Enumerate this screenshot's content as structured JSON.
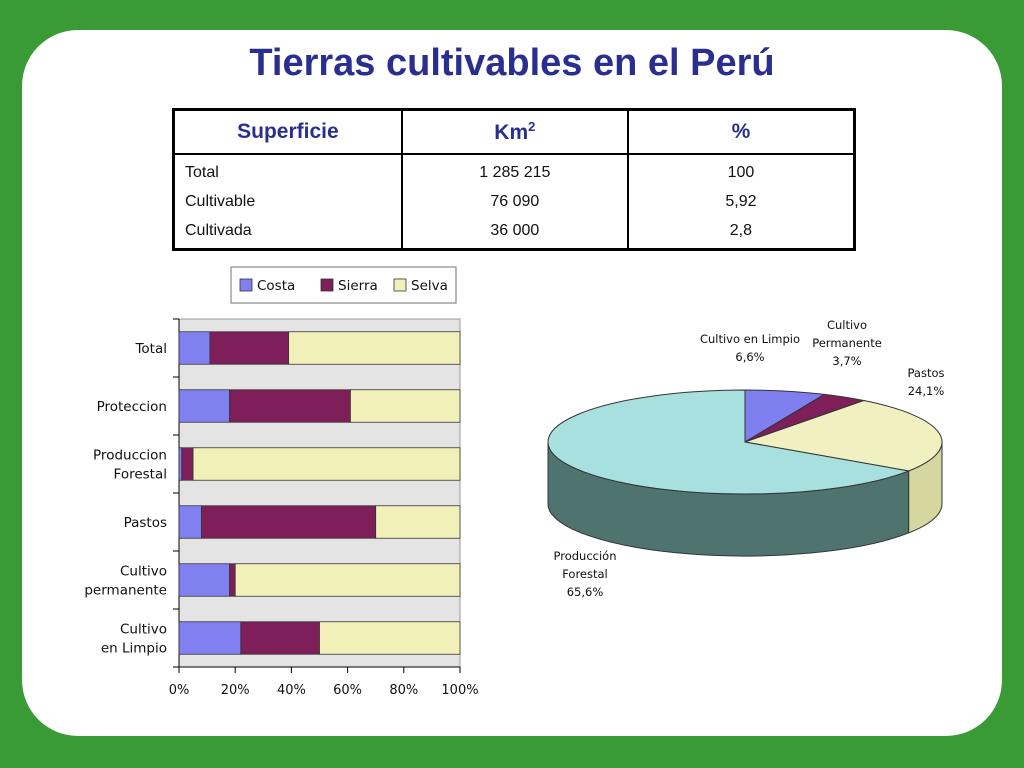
{
  "title": "Tierras cultivables en el Perú",
  "table": {
    "headers": {
      "superficie": "Superficie",
      "km_base": "Km",
      "km_sup": "2",
      "pct": "%"
    },
    "rows": [
      {
        "name": "Total",
        "km": "1 285 215",
        "pct": "100"
      },
      {
        "name": "Cultivable",
        "km": "76 090",
        "pct": "5,92"
      },
      {
        "name": "Cultivada",
        "km": "36 000",
        "pct": "2,8"
      }
    ]
  },
  "chart_data": [
    {
      "type": "bar",
      "orientation": "horizontal",
      "stacked": "percent",
      "categories": [
        "Total",
        "Proteccion",
        "Produccion Forestal",
        "Pastos",
        "Cultivo permanente",
        "Cultivo en Limpio"
      ],
      "series": [
        {
          "name": "Costa",
          "color": "#8080f0",
          "values": [
            11,
            18,
            1,
            8,
            18,
            22
          ]
        },
        {
          "name": "Sierra",
          "color": "#7f1f5a",
          "values": [
            28,
            43,
            4,
            62,
            2,
            28
          ]
        },
        {
          "name": "Selva",
          "color": "#f0f0b8",
          "values": [
            61,
            39,
            95,
            30,
            80,
            50
          ]
        }
      ],
      "xlim": [
        0,
        100
      ],
      "xticks": [
        "0%",
        "20%",
        "40%",
        "60%",
        "80%",
        "100%"
      ],
      "legend": "top"
    },
    {
      "type": "pie",
      "style": "3d",
      "slices": [
        {
          "label": "Cultivo en Limpio",
          "pct_label": "6,6%",
          "value": 6.6,
          "color": "#7f7ff0",
          "side_color": "#4f4fa8"
        },
        {
          "label": "Cultivo Permanente",
          "pct_label": "3,7%",
          "value": 3.7,
          "color": "#7f1f5a",
          "side_color": "#55143c"
        },
        {
          "label": "Pastos",
          "pct_label": "24,1%",
          "value": 24.1,
          "color": "#f0f0c0",
          "side_color": "#d6d6a0"
        },
        {
          "label": "Producción Forestal",
          "pct_label": "65,6%",
          "value": 65.6,
          "color": "#a8e0e0",
          "side_color": "#4f7470"
        }
      ],
      "annotations": [
        {
          "lines": [
            "Cultivo en Limpio",
            "6,6%"
          ]
        },
        {
          "lines": [
            "Cultivo",
            "Permanente",
            "3,7%"
          ]
        },
        {
          "lines": [
            "Pastos",
            "24,1%"
          ]
        },
        {
          "lines": [
            "Producción",
            "Forestal",
            "65,6%"
          ]
        }
      ]
    }
  ]
}
